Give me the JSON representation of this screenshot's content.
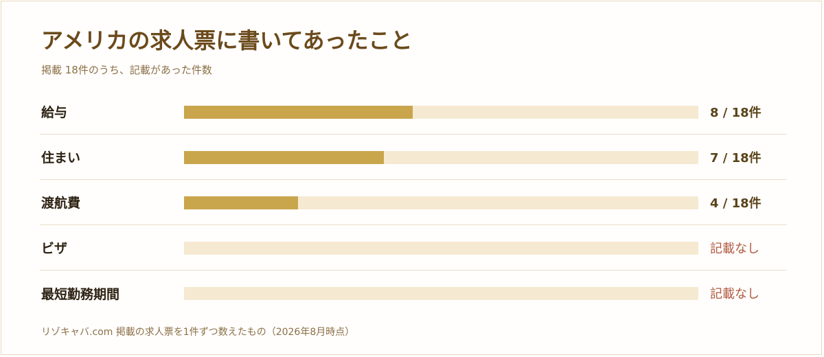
{
  "chart_data": {
    "type": "bar",
    "orientation": "horizontal",
    "title": "アメリカの求人票に書いてあったこと",
    "subtitle": "掲載 18件のうち、記載があった件数",
    "total": 18,
    "categories": [
      "給与",
      "住まい",
      "渡航費",
      "ビザ",
      "最短勤務期間"
    ],
    "values": [
      8,
      7,
      4,
      0,
      0
    ],
    "value_labels": [
      "8 / 18件",
      "7 / 18件",
      "4 / 18件",
      "記載なし",
      "記載なし"
    ],
    "xlim": [
      0,
      18
    ],
    "grid": false,
    "legend": "none",
    "colors": {
      "bar_fill": "#c9a54c",
      "bar_track": "#f5e9d1",
      "value_text": "#5a4317",
      "none_text": "#b05a40",
      "title_text": "#6b4a1b"
    },
    "footnote": "リゾキャバ.com 掲載の求人票を1件ずつ数えたもの（2026年8月時点）"
  }
}
